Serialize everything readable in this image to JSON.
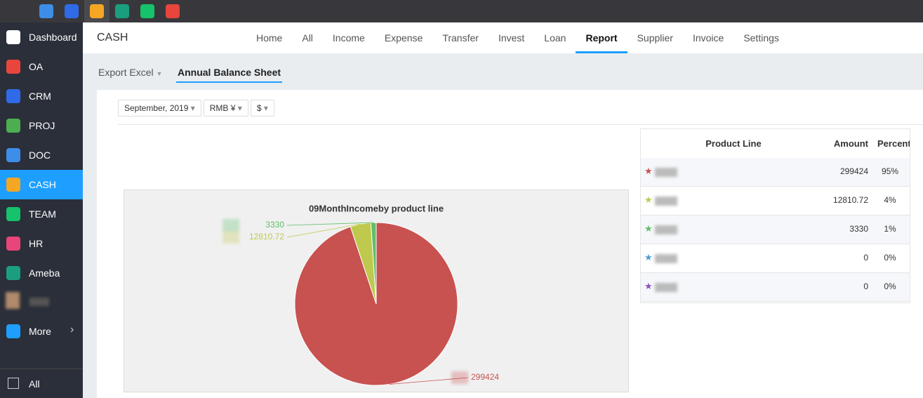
{
  "sidebar": {
    "items": [
      {
        "label": "Dashboard",
        "color": "#ffffff"
      },
      {
        "label": "OA",
        "color": "#e8453c"
      },
      {
        "label": "CRM",
        "color": "#2f6be8"
      },
      {
        "label": "PROJ",
        "color": "#4cae4f"
      },
      {
        "label": "DOC",
        "color": "#3d8ee8"
      },
      {
        "label": "CASH",
        "color": "#f5a623"
      },
      {
        "label": "TEAM",
        "color": "#16c26b"
      },
      {
        "label": "HR",
        "color": "#e8457a"
      },
      {
        "label": "Ameba",
        "color": "#1a9e7f"
      }
    ],
    "active": "CASH",
    "more": "More",
    "footer": "All"
  },
  "header": {
    "title": "CASH",
    "nav": [
      "Home",
      "All",
      "Income",
      "Expense",
      "Transfer",
      "Invest",
      "Loan",
      "Report",
      "Supplier",
      "Invoice",
      "Settings"
    ],
    "active": "Report"
  },
  "subnav": {
    "export": "Export Excel",
    "tab": "Annual Balance Sheet"
  },
  "filters": [
    "September, 2019",
    "RMB ¥",
    "$"
  ],
  "chart": {
    "type": "pie",
    "title": "09MonthIncomeby product line",
    "values": [
      299424,
      12810.72,
      3330
    ],
    "colors": [
      "#c85250",
      "#bfc94e",
      "#5fbf6a"
    ]
  },
  "table": {
    "headers": [
      "Product Line",
      "Amount",
      "Percent"
    ],
    "rows": [
      {
        "star": "#c85250",
        "amount": "299424",
        "percent": "95%"
      },
      {
        "star": "#bfc94e",
        "amount": "12810.72",
        "percent": "4%"
      },
      {
        "star": "#5fbf6a",
        "amount": "3330",
        "percent": "1%"
      },
      {
        "star": "#4a9fd0",
        "amount": "0",
        "percent": "0%"
      },
      {
        "star": "#8e4fc0",
        "amount": "0",
        "percent": "0%"
      }
    ]
  }
}
